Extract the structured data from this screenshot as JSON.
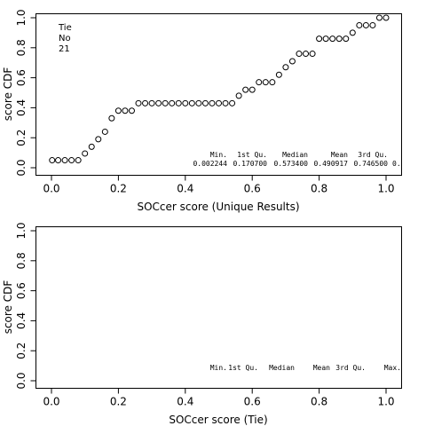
{
  "chart_data": [
    {
      "type": "scatter",
      "xlabel": "SOCcer score (Unique Results)",
      "ylabel": "score CDF",
      "xlim": [
        0,
        1
      ],
      "ylim": [
        0,
        1
      ],
      "x_ticks": [
        "0.0",
        "0.2",
        "0.4",
        "0.6",
        "0.8",
        "1.0"
      ],
      "y_ticks": [
        "0.0",
        "0.2",
        "0.4",
        "0.6",
        "0.8",
        "1.0"
      ],
      "legend_lines": [
        "Tie",
        "No",
        "21"
      ],
      "legend_position": "top-left",
      "summary_headers": [
        "Min.",
        "1st Qu.",
        "Median",
        "Mean",
        "3rd Qu.",
        "Max."
      ],
      "summary_values": [
        "0.002244",
        "0.170700",
        "0.573400",
        "0.490917",
        "0.746500",
        "0."
      ],
      "series": [
        {
          "marker": "open-circle",
          "x": [
            0.002,
            0.02,
            0.04,
            0.06,
            0.08,
            0.1,
            0.12,
            0.14,
            0.16,
            0.18,
            0.2,
            0.22,
            0.24,
            0.26,
            0.28,
            0.3,
            0.32,
            0.34,
            0.36,
            0.38,
            0.4,
            0.42,
            0.44,
            0.46,
            0.48,
            0.5,
            0.52,
            0.54,
            0.56,
            0.58,
            0.6,
            0.62,
            0.64,
            0.66,
            0.68,
            0.7,
            0.72,
            0.74,
            0.76,
            0.78,
            0.8,
            0.82,
            0.84,
            0.86,
            0.88,
            0.9,
            0.92,
            0.94,
            0.96,
            0.98,
            1.0
          ],
          "y": [
            0.05,
            0.05,
            0.05,
            0.05,
            0.05,
            0.095,
            0.14,
            0.19,
            0.24,
            0.33,
            0.38,
            0.38,
            0.38,
            0.43,
            0.43,
            0.43,
            0.43,
            0.43,
            0.43,
            0.43,
            0.43,
            0.43,
            0.43,
            0.43,
            0.43,
            0.43,
            0.43,
            0.43,
            0.48,
            0.52,
            0.52,
            0.57,
            0.57,
            0.57,
            0.62,
            0.67,
            0.71,
            0.76,
            0.76,
            0.76,
            0.86,
            0.86,
            0.86,
            0.86,
            0.86,
            0.9,
            0.95,
            0.95,
            0.95,
            1.0,
            1.0
          ]
        }
      ]
    },
    {
      "type": "scatter",
      "xlabel": "SOCcer score (Tie)",
      "ylabel": "score CDF",
      "xlim": [
        0,
        1
      ],
      "ylim": [
        0,
        1
      ],
      "x_ticks": [
        "0.0",
        "0.2",
        "0.4",
        "0.6",
        "0.8",
        "1.0"
      ],
      "y_ticks": [
        "0.0",
        "0.2",
        "0.4",
        "0.6",
        "0.8",
        "1.0"
      ],
      "summary_headers": [
        "Min.",
        "1st Qu.",
        "Median",
        "Mean",
        "3rd Qu.",
        "Max."
      ],
      "series": []
    }
  ]
}
